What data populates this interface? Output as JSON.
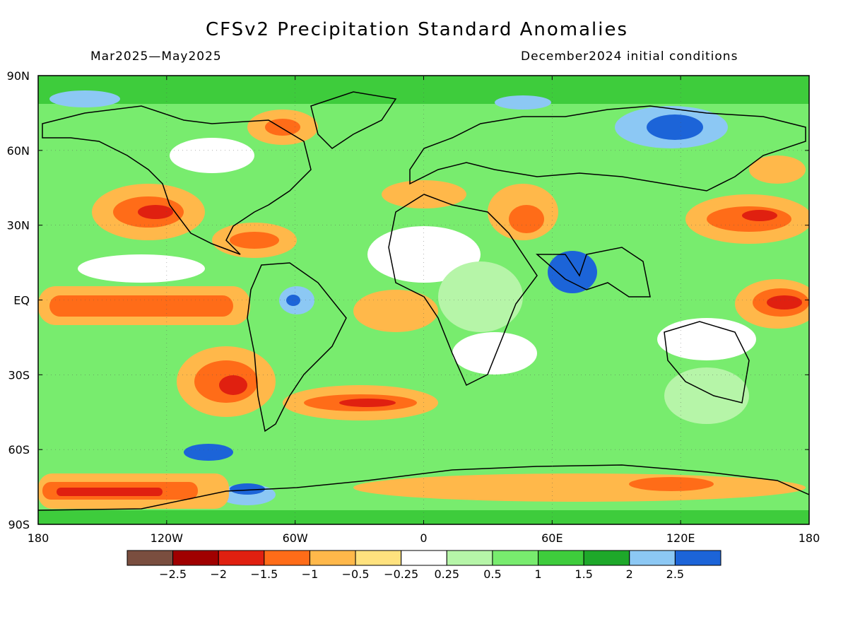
{
  "title": "CFSv2 Precipitation Standard Anomalies",
  "subtitle_left": "Mar2025—May2025",
  "subtitle_right": "December2024 initial conditions",
  "lat_labels": [
    "90N",
    "60N",
    "30N",
    "EQ",
    "30S",
    "60S",
    "90S"
  ],
  "lat_values": [
    90,
    60,
    30,
    0,
    -30,
    -60,
    -90
  ],
  "lon_labels": [
    "180",
    "120W",
    "60W",
    "0",
    "60E",
    "120E",
    "180"
  ],
  "lon_values": [
    -180,
    -120,
    -60,
    0,
    60,
    120,
    180
  ],
  "colorbar": {
    "colors": [
      "#7a4e3f",
      "#a00000",
      "#e02010",
      "#ff6c18",
      "#ffb84a",
      "#ffe27e",
      "#ffffff",
      "#b6f5a8",
      "#78ec6e",
      "#3ecc3c",
      "#1ea82a",
      "#8cc8f4",
      "#1c64d8"
    ],
    "labels": [
      "−2.5",
      "−2",
      "−1.5",
      "−1",
      "−0.5",
      "−0.25",
      "0.25",
      "0.5",
      "1",
      "1.5",
      "2",
      "2.5"
    ]
  }
}
